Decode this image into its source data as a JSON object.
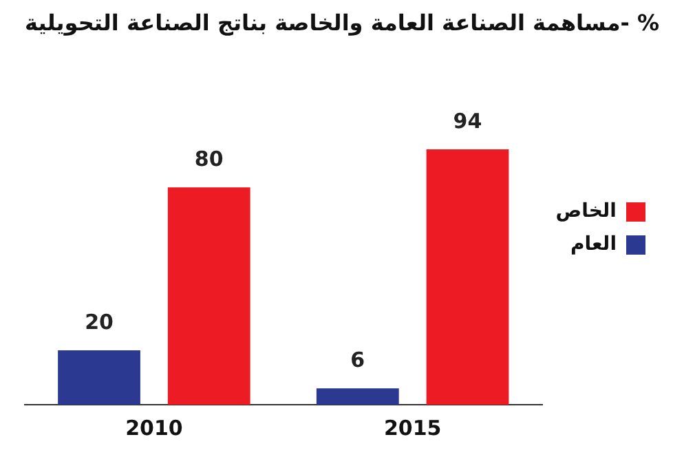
{
  "chart_data": {
    "type": "bar",
    "title": "مساهمة الصناعة العامة والخاصة بناتج الصناعة التحويلية- %",
    "categories": [
      "2010",
      "2015"
    ],
    "series": [
      {
        "name": "العام",
        "color": "#2b3990",
        "values": [
          20,
          6
        ]
      },
      {
        "name": "الخاص",
        "color": "#ed1c24",
        "values": [
          80,
          94
        ]
      }
    ],
    "data_labels": true,
    "legend": "right",
    "grid": false
  }
}
